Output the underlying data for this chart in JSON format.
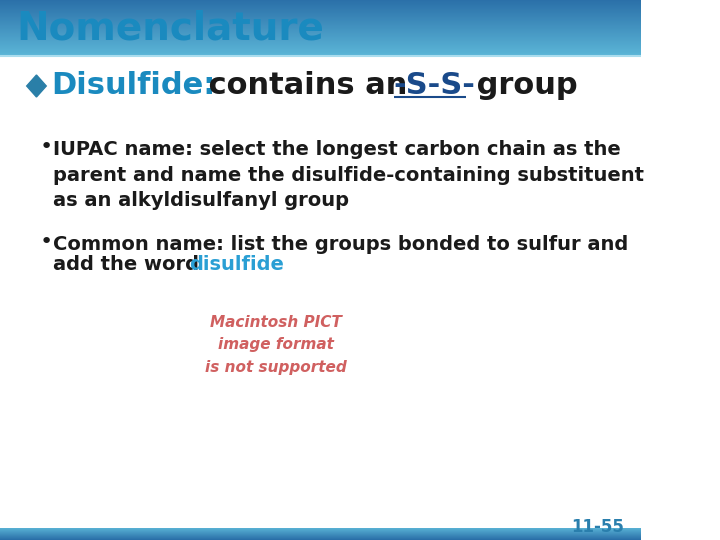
{
  "title": "Nomenclature",
  "title_color": "#1a8abf",
  "title_fontsize": 28,
  "title_bold": true,
  "background_color": "#ffffff",
  "header_bar_color1": "#5ab4d6",
  "header_bar_color2": "#2a6fa8",
  "footer_bar_color1": "#2a6fa8",
  "footer_bar_color2": "#5ab4d6",
  "diamond_color": "#2a7fa8",
  "bullet1_label": "Disulfide:",
  "bullet1_label_color": "#1a8abf",
  "bullet1_text": " contains an ",
  "bullet1_highlight": "-S-S-",
  "bullet1_highlight_color": "#1a4a8a",
  "bullet1_end": " group",
  "bullet1_fontsize": 22,
  "sub_bullet1": "IUPAC name: select the longest carbon chain as the\nparent and name the disulfide-containing substituent\nas an alkyldisulfanyl group",
  "sub_bullet2_line1": "Common name: list the groups bonded to sulfur and",
  "sub_bullet2_line2_plain": "add the word ",
  "sub_bullet2_colored": "disulfide",
  "sub_bullet2_color": "#2a9fd4",
  "sub_bullet_fontsize": 14,
  "sub_bullet_color": "#1a1a1a",
  "pict_text": "Macintosh PICT\nimage format\nis not supported",
  "pict_color": "#d06060",
  "page_number": "11-55",
  "page_color": "#2a7fad"
}
